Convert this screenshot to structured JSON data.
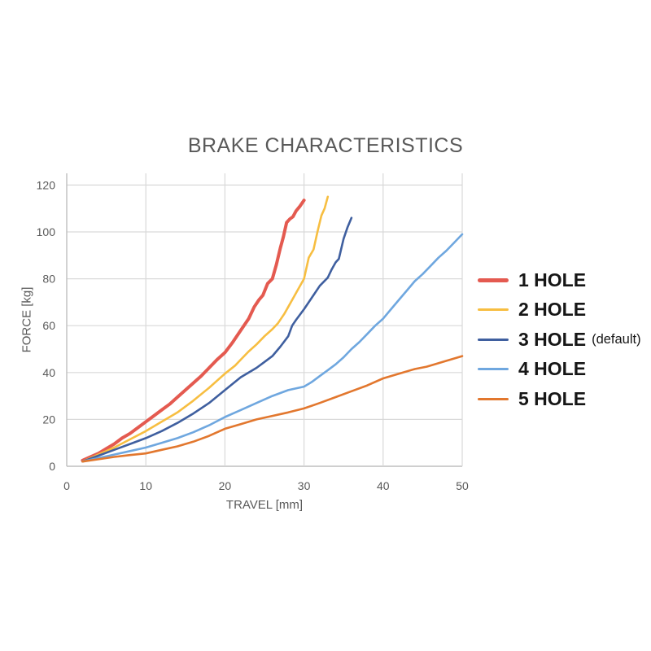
{
  "chart_data": {
    "type": "line",
    "title": "BRAKE CHARACTERISTICS",
    "xlabel": "TRAVEL [mm]",
    "ylabel": "FORCE [kg]",
    "xlim": [
      0,
      50
    ],
    "ylim": [
      0,
      125
    ],
    "x_ticks": [
      0,
      10,
      20,
      30,
      40,
      50
    ],
    "y_ticks": [
      0,
      20,
      40,
      60,
      80,
      100,
      120
    ],
    "grid": true,
    "legend_position": "right",
    "colors": {
      "gridline": "#d9d9d9",
      "axis_line": "#bfbfbf",
      "title_text": "#595959",
      "tick_text": "#595959",
      "legend_text": "#161616",
      "background": "#ffffff"
    },
    "series": [
      {
        "name": "1 HOLE",
        "suffix": "",
        "color": "#E45A50",
        "width": 4,
        "points": [
          [
            2,
            2.5
          ],
          [
            3,
            4
          ],
          [
            4,
            5.5
          ],
          [
            5,
            7.5
          ],
          [
            6,
            9.5
          ],
          [
            7,
            12
          ],
          [
            8,
            14
          ],
          [
            9,
            16.5
          ],
          [
            10,
            19
          ],
          [
            11,
            21.5
          ],
          [
            12,
            24
          ],
          [
            13,
            26.5
          ],
          [
            14,
            29.5
          ],
          [
            15,
            32.5
          ],
          [
            16,
            35.5
          ],
          [
            17,
            38.5
          ],
          [
            18,
            42
          ],
          [
            19,
            45.5
          ],
          [
            20,
            48.5
          ],
          [
            21,
            53
          ],
          [
            22,
            58
          ],
          [
            23,
            63
          ],
          [
            23.7,
            68
          ],
          [
            24.3,
            71
          ],
          [
            24.8,
            73
          ],
          [
            25.4,
            78
          ],
          [
            26,
            80
          ],
          [
            26.5,
            86
          ],
          [
            27,
            93
          ],
          [
            27.4,
            98
          ],
          [
            27.8,
            104
          ],
          [
            28.2,
            105.5
          ],
          [
            28.6,
            106.5
          ],
          [
            29,
            109
          ],
          [
            29.5,
            111
          ],
          [
            30,
            113.5
          ]
        ]
      },
      {
        "name": "2 HOLE",
        "suffix": "",
        "color": "#F7BE41",
        "width": 2.6,
        "points": [
          [
            2,
            2
          ],
          [
            4,
            5
          ],
          [
            6,
            8
          ],
          [
            8,
            11.5
          ],
          [
            10,
            15
          ],
          [
            12,
            19
          ],
          [
            14,
            23
          ],
          [
            16,
            28
          ],
          [
            18,
            33.5
          ],
          [
            20,
            39.5
          ],
          [
            21.3,
            43
          ],
          [
            22,
            45.5
          ],
          [
            23,
            49
          ],
          [
            24,
            52
          ],
          [
            25,
            55.5
          ],
          [
            26,
            58.5
          ],
          [
            26.7,
            61
          ],
          [
            27.5,
            65
          ],
          [
            28,
            68
          ],
          [
            29,
            74
          ],
          [
            30,
            80
          ],
          [
            30.6,
            89
          ],
          [
            31.2,
            92.5
          ],
          [
            31.7,
            100
          ],
          [
            32.2,
            107
          ],
          [
            32.6,
            110
          ],
          [
            33,
            115
          ]
        ]
      },
      {
        "name": "3 HOLE",
        "suffix": "(default)",
        "color": "#3F5F9F",
        "width": 2.6,
        "points": [
          [
            2,
            2
          ],
          [
            4,
            4.5
          ],
          [
            6,
            7
          ],
          [
            8,
            9.5
          ],
          [
            10,
            12
          ],
          [
            12,
            15
          ],
          [
            14,
            18.5
          ],
          [
            16,
            22.5
          ],
          [
            18,
            27
          ],
          [
            20,
            32.5
          ],
          [
            22,
            38
          ],
          [
            24,
            42
          ],
          [
            25,
            44.5
          ],
          [
            26,
            47
          ],
          [
            27,
            51
          ],
          [
            28,
            55.5
          ],
          [
            28.5,
            60
          ],
          [
            29,
            62.5
          ],
          [
            30,
            67
          ],
          [
            31,
            72
          ],
          [
            32,
            77
          ],
          [
            33,
            80.5
          ],
          [
            33.5,
            84
          ],
          [
            34,
            87
          ],
          [
            34.4,
            88.5
          ],
          [
            35,
            97
          ],
          [
            35.5,
            102
          ],
          [
            36,
            106
          ]
        ]
      },
      {
        "name": "4 HOLE",
        "suffix": "",
        "color": "#6FA7DF",
        "width": 2.6,
        "points": [
          [
            2,
            2
          ],
          [
            4,
            3.5
          ],
          [
            6,
            5
          ],
          [
            8,
            6.5
          ],
          [
            10,
            8
          ],
          [
            12,
            10
          ],
          [
            14,
            12
          ],
          [
            16,
            14.5
          ],
          [
            18,
            17.5
          ],
          [
            20,
            21
          ],
          [
            22,
            24
          ],
          [
            24,
            27
          ],
          [
            26,
            30
          ],
          [
            28,
            32.5
          ],
          [
            30,
            34
          ],
          [
            31,
            36
          ],
          [
            32,
            38.5
          ],
          [
            33,
            41
          ],
          [
            34,
            43.5
          ],
          [
            35,
            46.5
          ],
          [
            36,
            50
          ],
          [
            37,
            53
          ],
          [
            38,
            56.5
          ],
          [
            39,
            60
          ],
          [
            40,
            63
          ],
          [
            41,
            67
          ],
          [
            42,
            71
          ],
          [
            43,
            75
          ],
          [
            44,
            79
          ],
          [
            45,
            82
          ],
          [
            46,
            85.5
          ],
          [
            47,
            89
          ],
          [
            48,
            92
          ],
          [
            49,
            95.5
          ],
          [
            50,
            99
          ]
        ]
      },
      {
        "name": "5 HOLE",
        "suffix": "",
        "color": "#E2772E",
        "width": 2.6,
        "points": [
          [
            2,
            2
          ],
          [
            4,
            3
          ],
          [
            6,
            4
          ],
          [
            8,
            4.8
          ],
          [
            10,
            5.5
          ],
          [
            12,
            7
          ],
          [
            14,
            8.5
          ],
          [
            16,
            10.5
          ],
          [
            18,
            13
          ],
          [
            20,
            16
          ],
          [
            22,
            18
          ],
          [
            24,
            20
          ],
          [
            26,
            21.5
          ],
          [
            28,
            23
          ],
          [
            30,
            24.7
          ],
          [
            32,
            27
          ],
          [
            34,
            29.5
          ],
          [
            36,
            32
          ],
          [
            38,
            34.5
          ],
          [
            40,
            37.5
          ],
          [
            42,
            39.5
          ],
          [
            44,
            41.5
          ],
          [
            45.5,
            42.5
          ],
          [
            46.5,
            43.5
          ],
          [
            48,
            45
          ],
          [
            49,
            46
          ],
          [
            50,
            47
          ]
        ]
      }
    ]
  }
}
